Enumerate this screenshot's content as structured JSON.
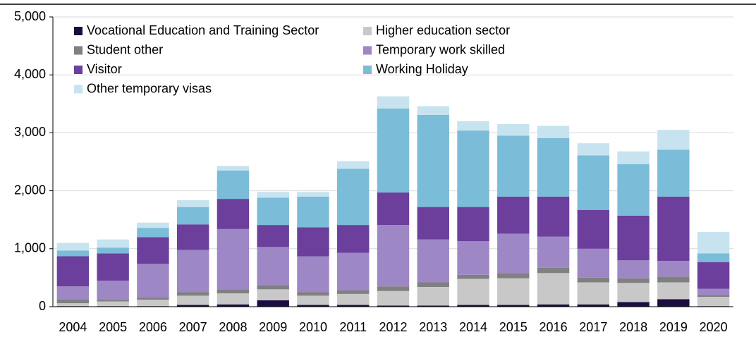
{
  "chart_data": {
    "type": "stacked_bar",
    "categories": [
      "2004",
      "2005",
      "2006",
      "2007",
      "2008",
      "2009",
      "2010",
      "2011",
      "2012",
      "2013",
      "2014",
      "2015",
      "2016",
      "2017",
      "2018",
      "2019",
      "2020"
    ],
    "series": [
      {
        "name": "Vocational Education and Training Sector",
        "color": "#1c0d3f",
        "values": [
          10,
          10,
          10,
          30,
          40,
          110,
          30,
          30,
          20,
          20,
          30,
          30,
          40,
          40,
          80,
          130,
          10
        ]
      },
      {
        "name": "Higher education sector",
        "color": "#c8c8c8",
        "values": [
          50,
          80,
          110,
          160,
          190,
          190,
          160,
          190,
          250,
          320,
          450,
          460,
          540,
          380,
          330,
          290,
          160
        ]
      },
      {
        "name": "Student other",
        "color": "#808080",
        "values": [
          70,
          30,
          40,
          60,
          70,
          70,
          60,
          60,
          80,
          80,
          70,
          90,
          90,
          80,
          80,
          100,
          30
        ]
      },
      {
        "name": "Temporary work skilled",
        "color": "#9d87c5",
        "values": [
          220,
          330,
          580,
          730,
          1040,
          660,
          620,
          650,
          1060,
          740,
          580,
          680,
          540,
          500,
          310,
          270,
          110
        ]
      },
      {
        "name": "Visitor",
        "color": "#6b3f9b",
        "values": [
          520,
          470,
          460,
          440,
          520,
          380,
          500,
          480,
          560,
          560,
          590,
          640,
          690,
          670,
          770,
          1110,
          460
        ]
      },
      {
        "name": "Working Holiday",
        "color": "#7bbcd8",
        "values": [
          100,
          100,
          160,
          300,
          490,
          470,
          530,
          970,
          1450,
          1590,
          1320,
          1050,
          1010,
          940,
          890,
          810,
          150
        ]
      },
      {
        "name": "Other temporary visas",
        "color": "#c7e3ef",
        "values": [
          130,
          140,
          90,
          120,
          80,
          100,
          80,
          130,
          210,
          150,
          160,
          200,
          210,
          210,
          220,
          340,
          370
        ]
      }
    ],
    "ylim": [
      0,
      5000
    ],
    "yticks": [
      0,
      {
        "value": 1000,
        "label": "1,000"
      },
      {
        "value": 2000,
        "label": "2,000"
      },
      {
        "value": 3000,
        "label": "3,000"
      },
      {
        "value": 4000,
        "label": "4,000"
      },
      {
        "value": 5000,
        "label": "5,000"
      }
    ],
    "grid": true
  }
}
